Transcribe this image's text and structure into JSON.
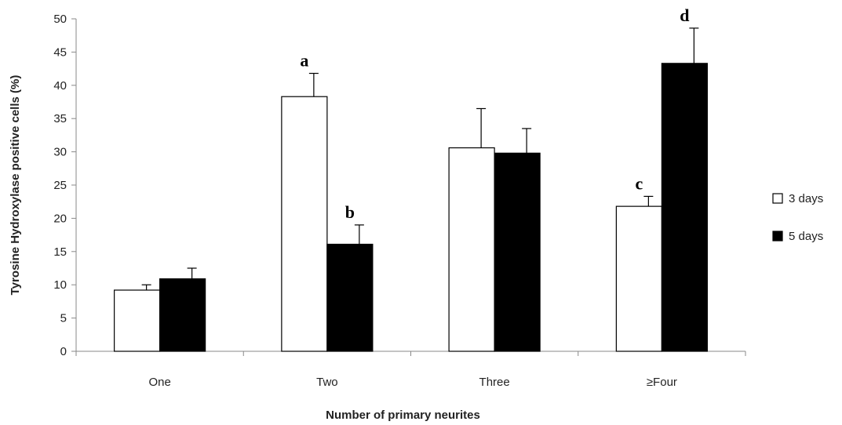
{
  "chart_data": {
    "type": "bar",
    "xlabel": "Number of primary neurites",
    "ylabel": "Tyrosine Hydroxylase  positive cells (%)",
    "ylim": [
      0,
      50
    ],
    "yticks": [
      0,
      5,
      10,
      15,
      20,
      25,
      30,
      35,
      40,
      45,
      50
    ],
    "categories": [
      "One",
      "Two",
      "Three",
      "≥Four"
    ],
    "series": [
      {
        "name": "3 days",
        "color": "#ffffff",
        "values": [
          9.2,
          38.3,
          30.6,
          21.8
        ],
        "errors": [
          0.8,
          3.5,
          5.9,
          1.5
        ],
        "labels": [
          "",
          "a",
          "",
          "c"
        ]
      },
      {
        "name": "5 days",
        "color": "#000000",
        "values": [
          10.9,
          16.1,
          29.8,
          43.3
        ],
        "errors": [
          1.6,
          2.9,
          3.7,
          5.3
        ],
        "labels": [
          "",
          "b",
          "",
          "d"
        ]
      }
    ],
    "legend_position": "right",
    "grid": false
  }
}
